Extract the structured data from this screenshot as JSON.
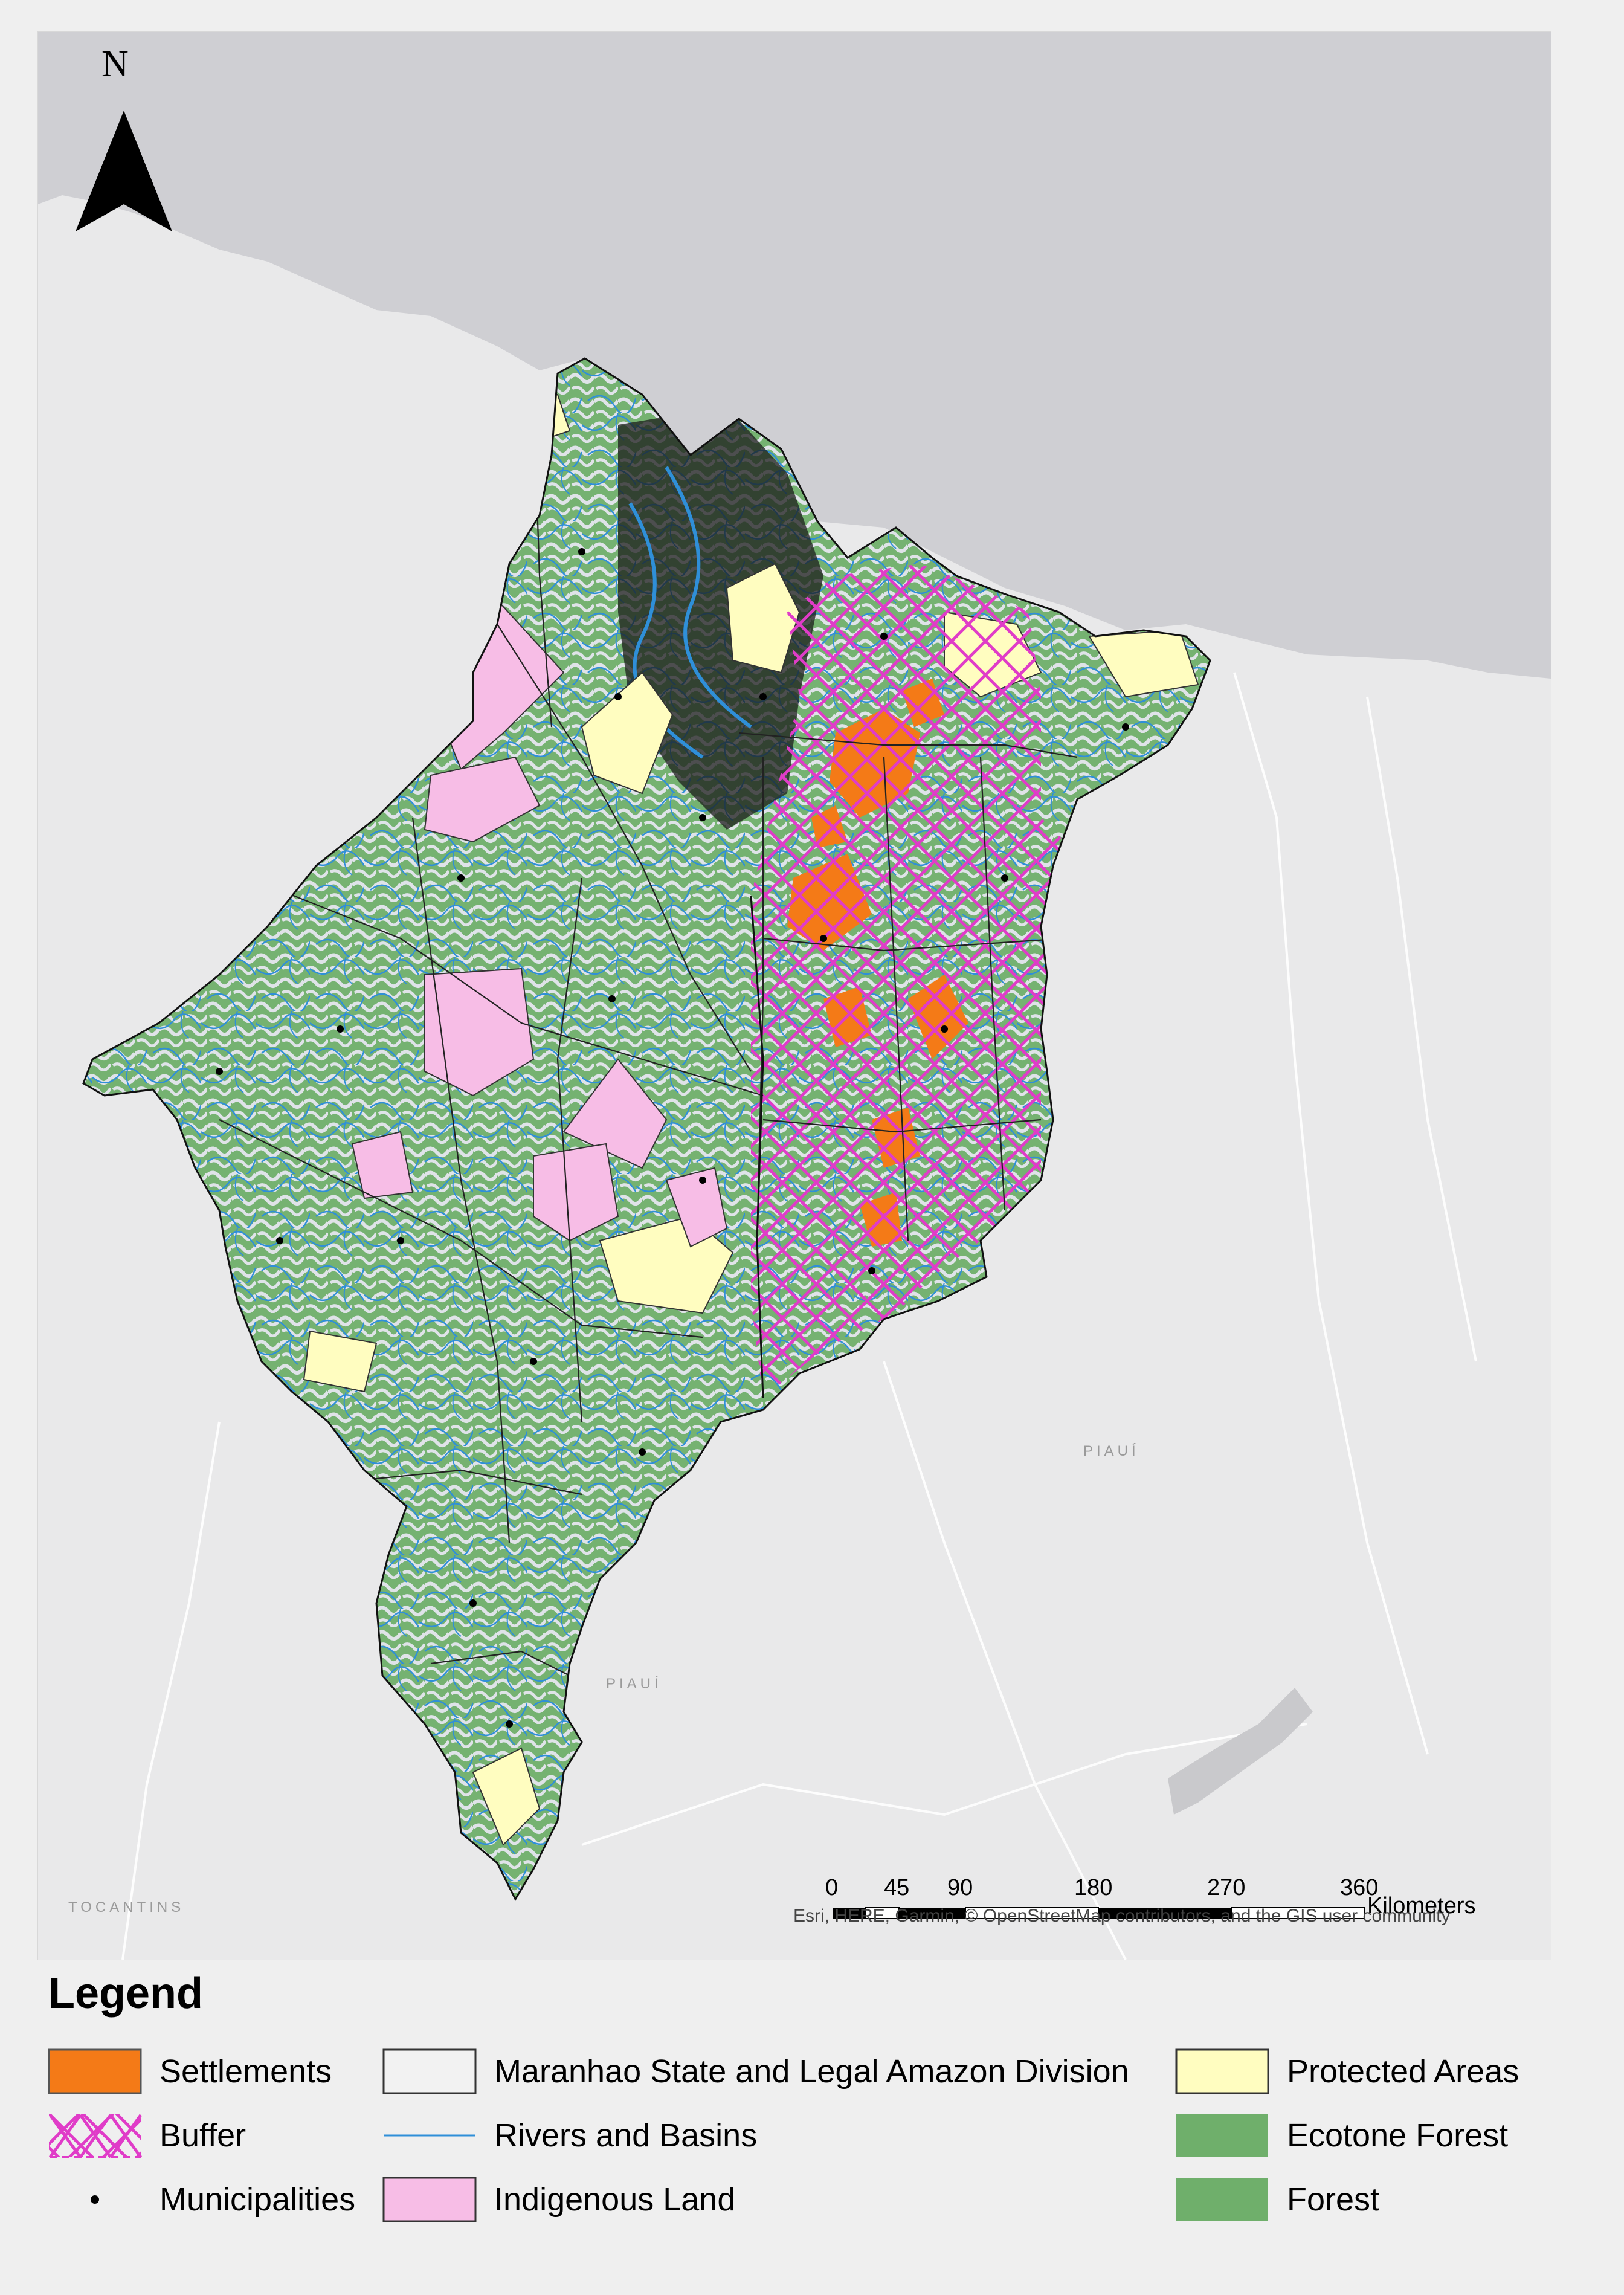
{
  "map": {
    "north_label": "N",
    "region_labels": {
      "piaui_east": "PIAUÍ",
      "piaui_south": "PIAUÍ",
      "tocantins": "TOCANTINS"
    },
    "scale_bar": {
      "ticks": [
        "0",
        "45",
        "90",
        "180",
        "270",
        "360"
      ],
      "unit": "Kilometers"
    },
    "attribution": "Esri, HERE, Garmin, © OpenStreetMap contributors, and the GIS user community",
    "colors": {
      "ocean": "#cfcfd3",
      "land": "#e9e9ea",
      "state_fill": "#dfe3e8",
      "forest": "#6faf6b",
      "settlements": "#f47a17",
      "buffer": "#e03cc8",
      "rivers": "#2f8fd8",
      "indigenous": "#f7bde6",
      "protected": "#fffdc0"
    }
  },
  "legend": {
    "title": "Legend",
    "items": [
      {
        "label": "Settlements",
        "symbol": "settlements"
      },
      {
        "label": "Buffer",
        "symbol": "buffer"
      },
      {
        "label": "Municipalities",
        "symbol": "point"
      },
      {
        "label": "Maranhao State and Legal Amazon Division",
        "symbol": "outline"
      },
      {
        "label": "Rivers and Basins",
        "symbol": "line"
      },
      {
        "label": "Indigenous Land",
        "symbol": "indigenous"
      },
      {
        "label": "Protected Areas",
        "symbol": "protected"
      },
      {
        "label": "Ecotone Forest",
        "symbol": "ecotone"
      },
      {
        "label": "Forest",
        "symbol": "forest"
      }
    ]
  }
}
